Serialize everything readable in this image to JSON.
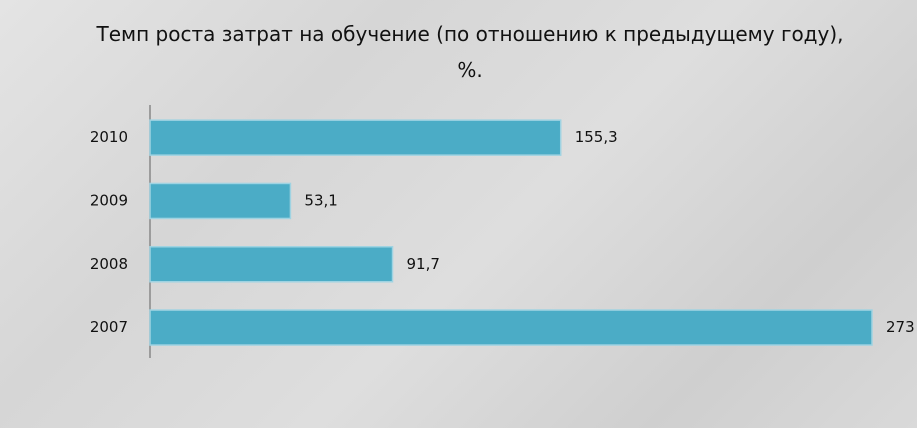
{
  "chart_data": {
    "type": "bar",
    "orientation": "horizontal",
    "title": "Темп роста затрат на обучение (по отношению к предыдущему году), %.",
    "categories": [
      "2010",
      "2009",
      "2008",
      "2007"
    ],
    "values": [
      155.3,
      53.1,
      91.7,
      273
    ],
    "value_labels": [
      "155,3",
      "53,1",
      "91,7",
      "273"
    ],
    "color": "#4bacc6"
  }
}
